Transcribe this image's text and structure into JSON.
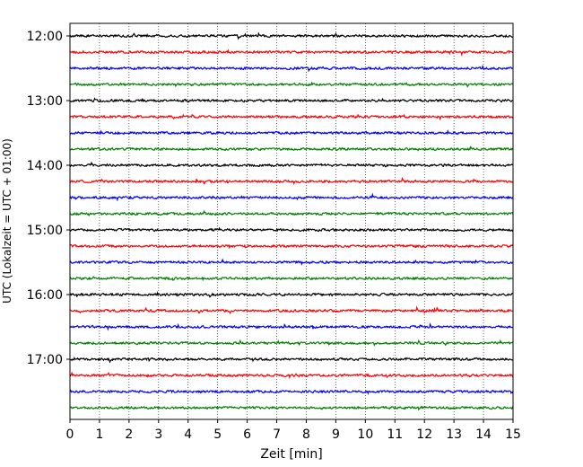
{
  "chart_data": {
    "type": "line",
    "title": "",
    "xlabel": "Zeit  [min]",
    "ylabel": "UTC (Lokalzeit = UTC + 01:00)",
    "xlim": [
      0,
      15
    ],
    "x_ticks": [
      "0",
      "1",
      "2",
      "3",
      "4",
      "5",
      "6",
      "7",
      "8",
      "9",
      "10",
      "11",
      "12",
      "13",
      "14",
      "15"
    ],
    "y_tick_labels": [
      "12:00",
      "13:00",
      "14:00",
      "15:00",
      "16:00",
      "17:00"
    ],
    "grid": "vertical dotted",
    "legend": "none",
    "trace_interval_minutes": 15,
    "trace_start_times": [
      "12:00",
      "12:15",
      "12:30",
      "12:45",
      "13:00",
      "13:15",
      "13:30",
      "13:45",
      "14:00",
      "14:15",
      "14:30",
      "14:45",
      "15:00",
      "15:15",
      "15:30",
      "15:45",
      "16:00",
      "16:15",
      "16:30",
      "16:45",
      "17:00",
      "17:15",
      "17:30",
      "17:45"
    ],
    "trace_colors": [
      "#000000",
      "#ff0000",
      "#0000ff",
      "#008000"
    ]
  }
}
